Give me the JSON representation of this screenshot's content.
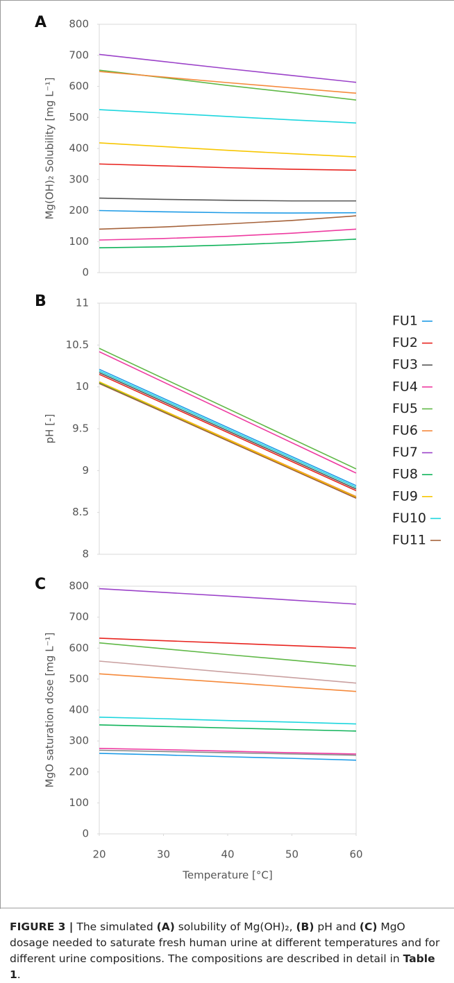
{
  "chart_data": [
    {
      "type": "line",
      "panel_label": "A",
      "ylabel": "Mg(OH)₂ Solubility [mg L⁻¹]",
      "x": [
        20,
        30,
        40,
        50,
        60
      ],
      "xlim": [
        20,
        60
      ],
      "ylim": [
        0,
        800
      ],
      "yticks": [
        0,
        100,
        200,
        300,
        400,
        500,
        600,
        700,
        800
      ],
      "series": [
        {
          "color": "#1e9be6",
          "values": [
            200,
            196,
            193,
            192,
            193
          ]
        },
        {
          "color": "#e8231e",
          "values": [
            350,
            344,
            338,
            333,
            330
          ]
        },
        {
          "color": "#555555",
          "values": [
            240,
            236,
            233,
            231,
            231
          ]
        },
        {
          "color": "#ee3aa0",
          "values": [
            105,
            110,
            117,
            127,
            140
          ]
        },
        {
          "color": "#5fb846",
          "values": [
            652,
            628,
            603,
            580,
            556
          ]
        },
        {
          "color": "#f5893a",
          "values": [
            648,
            630,
            612,
            595,
            578
          ]
        },
        {
          "color": "#9b42c9",
          "values": [
            703,
            680,
            657,
            635,
            613
          ]
        },
        {
          "color": "#10b35a",
          "values": [
            80,
            83,
            89,
            97,
            108
          ]
        },
        {
          "color": "#f7c600",
          "values": [
            418,
            406,
            394,
            383,
            373
          ]
        },
        {
          "color": "#1cd6de",
          "values": [
            525,
            514,
            503,
            492,
            482
          ]
        },
        {
          "color": "#a5623a",
          "values": [
            140,
            147,
            157,
            168,
            183
          ]
        }
      ]
    },
    {
      "type": "line",
      "panel_label": "B",
      "ylabel": "pH [-]",
      "x": [
        20,
        60
      ],
      "xlim": [
        20,
        60
      ],
      "ylim": [
        8,
        11
      ],
      "yticks": [
        8,
        8.5,
        9,
        9.5,
        10,
        10.5,
        11
      ],
      "legend": "right",
      "series": [
        {
          "name": "FU1",
          "color": "#1e9be6",
          "values": [
            10.21,
            8.82
          ]
        },
        {
          "name": "FU2",
          "color": "#e8231e",
          "values": [
            10.15,
            8.76
          ]
        },
        {
          "name": "FU3",
          "color": "#555555",
          "values": [
            10.17,
            8.78
          ]
        },
        {
          "name": "FU4",
          "color": "#ee3aa0",
          "values": [
            10.42,
            8.97
          ]
        },
        {
          "name": "FU5",
          "color": "#5fb846",
          "values": [
            10.46,
            9.02
          ]
        },
        {
          "name": "FU6",
          "color": "#f5893a",
          "values": [
            10.06,
            8.69
          ]
        },
        {
          "name": "FU7",
          "color": "#9b42c9",
          "values": [
            10.05,
            8.67
          ]
        },
        {
          "name": "FU8",
          "color": "#10b35a",
          "values": [
            10.05,
            8.68
          ]
        },
        {
          "name": "FU9",
          "color": "#f7c600",
          "values": [
            10.06,
            8.68
          ]
        },
        {
          "name": "FU10",
          "color": "#1cd6de",
          "values": [
            10.19,
            8.8
          ]
        },
        {
          "name": "FU11",
          "color": "#a5623a",
          "values": [
            10.04,
            8.67
          ]
        }
      ]
    },
    {
      "type": "line",
      "panel_label": "C",
      "ylabel": "MgO saturation dose [mg L⁻¹]",
      "xlabel": "Temperature [°C]",
      "x": [
        20,
        30,
        40,
        50,
        60
      ],
      "xlim": [
        20,
        60
      ],
      "xticks": [
        20,
        30,
        40,
        50,
        60
      ],
      "ylim": [
        0,
        800
      ],
      "yticks": [
        0,
        100,
        200,
        300,
        400,
        500,
        600,
        700,
        800
      ],
      "series": [
        {
          "color": "#1e9be6",
          "values": [
            260,
            255,
            249,
            244,
            238
          ]
        },
        {
          "color": "#e8231e",
          "values": [
            632,
            624,
            616,
            608,
            600
          ]
        },
        {
          "color": "#888888",
          "values": [
            270,
            266,
            262,
            258,
            254
          ]
        },
        {
          "color": "#ee3aa0",
          "values": [
            276,
            272,
            267,
            262,
            258
          ]
        },
        {
          "color": "#5fb846",
          "values": [
            617,
            598,
            579,
            561,
            542
          ]
        },
        {
          "color": "#f5893a",
          "values": [
            517,
            503,
            489,
            474,
            460
          ]
        },
        {
          "color": "#9b42c9",
          "values": [
            792,
            780,
            768,
            755,
            742
          ]
        },
        {
          "color": "#10b35a",
          "values": [
            352,
            347,
            342,
            337,
            332
          ]
        },
        {
          "color": "#1cd6de",
          "values": [
            377,
            372,
            366,
            361,
            355
          ]
        },
        {
          "color": "#c9a0a0",
          "values": [
            558,
            540,
            522,
            505,
            487
          ]
        }
      ]
    }
  ],
  "caption": [
    {
      "text": "FIGURE 3 |",
      "bold": true
    },
    {
      "text": " The simulated "
    },
    {
      "text": "(A)",
      "bold": true
    },
    {
      "text": " solubility of Mg(OH)₂, "
    },
    {
      "text": "(B)",
      "bold": true
    },
    {
      "text": " pH and "
    },
    {
      "text": "(C)",
      "bold": true
    },
    {
      "text": " MgO dosage needed to saturate fresh human urine at different temperatures and for different urine compositions. The compositions are described in detail in "
    },
    {
      "text": "Table 1",
      "bold": true
    },
    {
      "text": "."
    }
  ]
}
